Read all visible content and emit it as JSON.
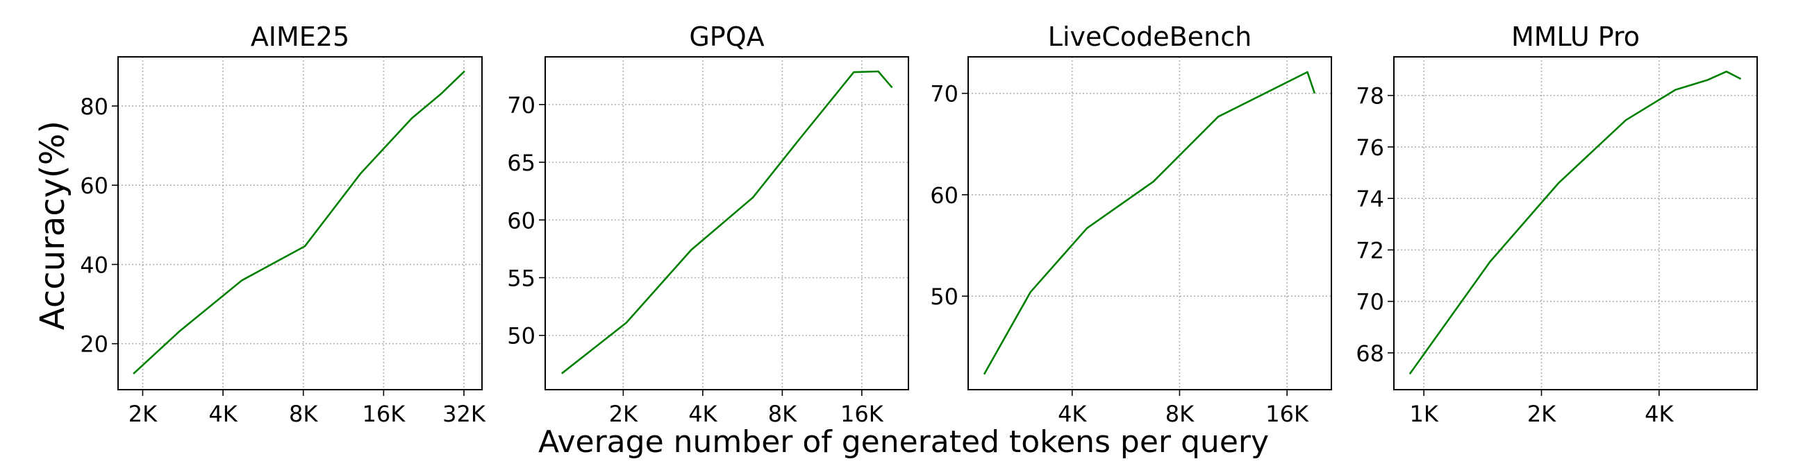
{
  "figure": {
    "ylabel": "Accuracy(%)",
    "xlabel": "Average number of generated tokens per query"
  },
  "line_color": "#008000",
  "chart_data": [
    {
      "type": "line",
      "title": "AIME25",
      "x_scale": "log2",
      "grid": true,
      "xlim": [
        1617,
        37400
      ],
      "ylim": [
        8.4,
        92.4
      ],
      "xticks": [
        2000,
        4000,
        8000,
        16000,
        32000
      ],
      "xtick_labels": [
        "2K",
        "4K",
        "8K",
        "16K",
        "32K"
      ],
      "yticks": [
        20,
        40,
        60,
        80
      ],
      "ytick_labels": [
        "20",
        "40",
        "60",
        "80"
      ],
      "x": [
        1846,
        2744,
        4710,
        8110,
        13130,
        20400,
        26300,
        32200
      ],
      "y": [
        12.4,
        23.1,
        36.0,
        44.6,
        63.0,
        76.9,
        83.1,
        88.8
      ]
    },
    {
      "type": "line",
      "title": "GPQA",
      "x_scale": "log2",
      "grid": true,
      "xlim": [
        1013,
        24020
      ],
      "ylim": [
        45.3,
        74.13
      ],
      "xticks": [
        2000,
        4000,
        8000,
        16000
      ],
      "xtick_labels": [
        "2K",
        "4K",
        "8K",
        "16K"
      ],
      "yticks": [
        50,
        55,
        60,
        65,
        70
      ],
      "ytick_labels": [
        "50",
        "55",
        "60",
        "65",
        "70"
      ],
      "x": [
        1170,
        2055,
        3615,
        6200,
        9140,
        14920,
        18470,
        20830
      ],
      "y": [
        46.7,
        51.1,
        57.4,
        61.96,
        66.8,
        72.8,
        72.87,
        71.47
      ]
    },
    {
      "type": "line",
      "title": "LiveCodeBench",
      "x_scale": "log2",
      "grid": true,
      "xlim": [
        2045,
        21300
      ],
      "ylim": [
        40.78,
        73.6
      ],
      "xticks": [
        4000,
        8000,
        16000
      ],
      "xtick_labels": [
        "4K",
        "8K",
        "16K"
      ],
      "yticks": [
        50,
        60,
        70
      ],
      "ytick_labels": [
        "50",
        "60",
        "70"
      ],
      "x": [
        2267,
        3057,
        4400,
        6755,
        10260,
        18250,
        19120
      ],
      "y": [
        42.3,
        50.4,
        56.7,
        61.3,
        67.7,
        72.1,
        70.0
      ]
    },
    {
      "type": "line",
      "title": "MMLU Pro",
      "x_scale": "log2",
      "grid": true,
      "xlim": [
        838,
        7130
      ],
      "ylim": [
        66.57,
        79.5
      ],
      "xticks": [
        1000,
        2000,
        4000
      ],
      "xtick_labels": [
        "1K",
        "2K",
        "4K"
      ],
      "yticks": [
        68,
        70,
        72,
        74,
        76,
        78
      ],
      "ytick_labels": [
        "68",
        "70",
        "72",
        "74",
        "76",
        "78"
      ],
      "x": [
        920,
        1477,
        2213,
        3288,
        4405,
        5320,
        5950,
        6480
      ],
      "y": [
        67.18,
        71.54,
        74.6,
        77.04,
        78.22,
        78.6,
        78.93,
        78.64
      ]
    }
  ]
}
